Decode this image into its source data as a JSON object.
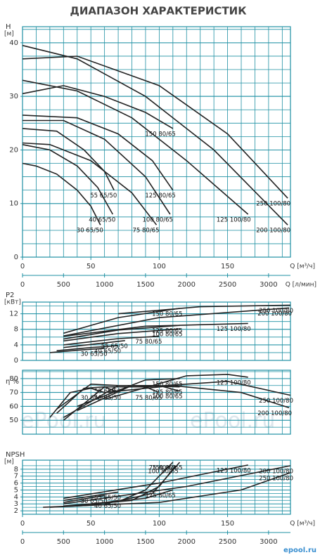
{
  "title": "ДИАПАЗОН ХАРАКТЕРИСТИК",
  "watermark": "ePool.ru",
  "logo": "epool.ru",
  "chart_data": [
    {
      "type": "line",
      "ylabel": "H",
      "yunit": "[м]",
      "xlim": [
        0,
        196
      ],
      "xticks": [
        0,
        50,
        100,
        150
      ],
      "xlabel": "Q [м³/ч]",
      "x2lim": [
        0,
        3267
      ],
      "x2ticks": [
        0,
        500,
        1000,
        1500,
        2000,
        2500,
        3000
      ],
      "x2label": "Q [л/мин]",
      "ylim": [
        0,
        43
      ],
      "yticks": [
        0,
        10,
        20,
        30,
        40
      ],
      "grid_x_step": 10,
      "grid_y_step": 2.5,
      "series": [
        {
          "name": "30 65/50",
          "color": "#222222",
          "x": [
            0,
            10,
            25,
            40,
            50,
            57
          ],
          "values": [
            17.5,
            17,
            15.5,
            12.5,
            9.5,
            6
          ]
        },
        {
          "name": "40 65/50",
          "color": "#222222",
          "x": [
            0,
            20,
            40,
            55,
            66
          ],
          "values": [
            21,
            20,
            17,
            13,
            8
          ]
        },
        {
          "name": "55 65/50",
          "color": "#222222",
          "x": [
            0,
            25,
            45,
            60,
            67
          ],
          "values": [
            24,
            23.5,
            20,
            16,
            12.5
          ]
        },
        {
          "name": "75 80/65",
          "color": "#222222",
          "x": [
            0,
            20,
            50,
            80,
            98
          ],
          "values": [
            21.3,
            21,
            18,
            12,
            6
          ]
        },
        {
          "name": "100 80/65",
          "color": "#222222",
          "x": [
            0,
            30,
            60,
            90,
            108
          ],
          "values": [
            25.5,
            25.5,
            22,
            15,
            8
          ]
        },
        {
          "name": "125 80/65",
          "color": "#222222",
          "x": [
            0,
            40,
            70,
            95,
            110
          ],
          "values": [
            26.5,
            26,
            23,
            18,
            12.5
          ]
        },
        {
          "name": "150 80/65",
          "color": "#222222",
          "x": [
            0,
            30,
            60,
            90,
            110
          ],
          "values": [
            30.5,
            32,
            30,
            27,
            24
          ]
        },
        {
          "name": "125 100/80",
          "color": "#222222",
          "x": [
            0,
            40,
            80,
            120,
            165
          ],
          "values": [
            33,
            31,
            26,
            18,
            8
          ]
        },
        {
          "name": "200 100/80",
          "color": "#222222",
          "x": [
            0,
            40,
            90,
            140,
            194
          ],
          "values": [
            39.5,
            37,
            30,
            20,
            6
          ]
        },
        {
          "name": "250 100/80",
          "color": "#222222",
          "x": [
            0,
            40,
            100,
            150,
            194
          ],
          "values": [
            37,
            37.5,
            32,
            23,
            11
          ]
        }
      ]
    },
    {
      "type": "line",
      "ylabel": "P2",
      "yunit": "[кВт]",
      "xlim": [
        0,
        196
      ],
      "ylim": [
        0,
        15
      ],
      "yticks": [
        0,
        4,
        8,
        12
      ],
      "grid_x_step": 10,
      "grid_y_step": 2,
      "series": [
        {
          "name": "30 65/50",
          "color": "#222222",
          "x": [
            20,
            40,
            60
          ],
          "values": [
            2,
            2.6,
            3.1
          ]
        },
        {
          "name": "40 65/50",
          "color": "#222222",
          "x": [
            25,
            50,
            70
          ],
          "values": [
            2.5,
            3.3,
            3.8
          ]
        },
        {
          "name": "55 65/50",
          "color": "#222222",
          "x": [
            30,
            55,
            75
          ],
          "values": [
            3.3,
            4.3,
            5.1
          ]
        },
        {
          "name": "75 80/65",
          "color": "#222222",
          "x": [
            30,
            70,
            100
          ],
          "values": [
            4,
            5.6,
            6.2
          ]
        },
        {
          "name": "100 80/65",
          "color": "#222222",
          "x": [
            30,
            70,
            115
          ],
          "values": [
            5,
            6.9,
            8.1
          ]
        },
        {
          "name": "125 80/65",
          "color": "#222222",
          "x": [
            30,
            70,
            115
          ],
          "values": [
            5.5,
            7.8,
            9
          ]
        },
        {
          "name": "150 80/65",
          "color": "#222222",
          "x": [
            30,
            70,
            115
          ],
          "values": [
            7,
            11,
            13.4
          ]
        },
        {
          "name": "125 100/80",
          "color": "#222222",
          "x": [
            30,
            90,
            165
          ],
          "values": [
            6.2,
            8.8,
            9.5
          ]
        },
        {
          "name": "200 100/80",
          "color": "#222222",
          "x": [
            30,
            100,
            195
          ],
          "values": [
            6.3,
            11,
            13.5
          ]
        },
        {
          "name": "250 100/80",
          "color": "#222222",
          "x": [
            70,
            130,
            196
          ],
          "values": [
            12,
            13.8,
            14.2
          ]
        }
      ]
    },
    {
      "type": "line",
      "ylabel": "η %",
      "xlim": [
        0,
        196
      ],
      "ylim": [
        40,
        86
      ],
      "yticks": [
        50,
        60,
        70,
        80
      ],
      "grid_x_step": 10,
      "grid_y_step": 5,
      "series": [
        {
          "name": "30 65/50",
          "color": "#222222",
          "x": [
            20,
            35,
            50,
            60
          ],
          "values": [
            52,
            70,
            73,
            70
          ]
        },
        {
          "name": "40 65/50",
          "color": "#222222",
          "x": [
            25,
            45,
            60,
            70
          ],
          "values": [
            55,
            73,
            74,
            70
          ]
        },
        {
          "name": "55 65/50",
          "color": "#222222",
          "x": [
            25,
            50,
            70
          ],
          "values": [
            58,
            76,
            75
          ]
        },
        {
          "name": "75 80/65",
          "color": "#222222",
          "x": [
            30,
            60,
            90,
            100
          ],
          "values": [
            50,
            74,
            74,
            70
          ]
        },
        {
          "name": "100 80/65",
          "color": "#222222",
          "x": [
            30,
            70,
            100,
            115
          ],
          "values": [
            52,
            75,
            75,
            71
          ]
        },
        {
          "name": "125 80/65",
          "color": "#222222",
          "x": [
            40,
            80,
            115
          ],
          "values": [
            57,
            75,
            74
          ]
        },
        {
          "name": "150 80/65",
          "color": "#222222",
          "x": [
            40,
            90,
            115
          ],
          "values": [
            60,
            79,
            80
          ]
        },
        {
          "name": "125 100/80",
          "color": "#222222",
          "x": [
            60,
            120,
            150,
            165
          ],
          "values": [
            65,
            82,
            83,
            81
          ]
        },
        {
          "name": "200 100/80",
          "color": "#222222",
          "x": [
            60,
            110,
            160,
            195
          ],
          "values": [
            70,
            75,
            70,
            59
          ]
        },
        {
          "name": "250 100/80",
          "color": "#222222",
          "x": [
            90,
            150,
            196
          ],
          "values": [
            74,
            78,
            68
          ]
        }
      ]
    },
    {
      "type": "line",
      "ylabel": "NPSH",
      "yunit": "[м]",
      "xlim": [
        0,
        196
      ],
      "xticks": [
        0,
        50,
        100,
        150
      ],
      "xlabel": "Q [м³/ч]",
      "x2lim": [
        0,
        3267
      ],
      "x2ticks": [
        0,
        500,
        1000,
        1500,
        2000,
        2500,
        3000
      ],
      "ylim": [
        1.5,
        9.3
      ],
      "yticks": [
        2,
        3,
        4,
        5,
        6,
        7,
        8
      ],
      "grid_x_step": 10,
      "grid_y_step": 1,
      "series": [
        {
          "name": "30 65/50",
          "color": "#222222",
          "x": [
            30,
            60
          ],
          "values": [
            3.2,
            4.2
          ]
        },
        {
          "name": "40 65/50",
          "color": "#222222",
          "x": [
            20,
            50,
            70
          ],
          "values": [
            2.5,
            2.8,
            3.5
          ]
        },
        {
          "name": "55 65/50",
          "color": "#222222",
          "x": [
            30,
            70
          ],
          "values": [
            3.5,
            4.7
          ]
        },
        {
          "name": "75 80/65",
          "color": "#222222",
          "x": [
            30,
            70,
            90,
            110
          ],
          "values": [
            2.7,
            3.3,
            5,
            9
          ]
        },
        {
          "name": "100 80/65",
          "color": "#222222",
          "x": [
            40,
            80,
            100,
            112
          ],
          "values": [
            2.8,
            3.5,
            5.5,
            8.5
          ]
        },
        {
          "name": "125 80/65",
          "color": "#222222",
          "x": [
            50,
            90,
            110
          ],
          "values": [
            3,
            3.8,
            5
          ]
        },
        {
          "name": "150 80/65",
          "color": "#222222",
          "x": [
            60,
            95,
            115
          ],
          "values": [
            3,
            4.5,
            9
          ]
        },
        {
          "name": "125 100/80",
          "color": "#222222",
          "x": [
            30,
            100,
            165
          ],
          "values": [
            3.8,
            6,
            8.6
          ]
        },
        {
          "name": "200 100/80",
          "color": "#222222",
          "x": [
            30,
            120,
            196
          ],
          "values": [
            3,
            5.5,
            8.5
          ]
        },
        {
          "name": "250 100/80",
          "color": "#222222",
          "x": [
            15,
            100,
            160,
            196
          ],
          "values": [
            2.5,
            3.2,
            5,
            7.5
          ]
        }
      ]
    }
  ]
}
